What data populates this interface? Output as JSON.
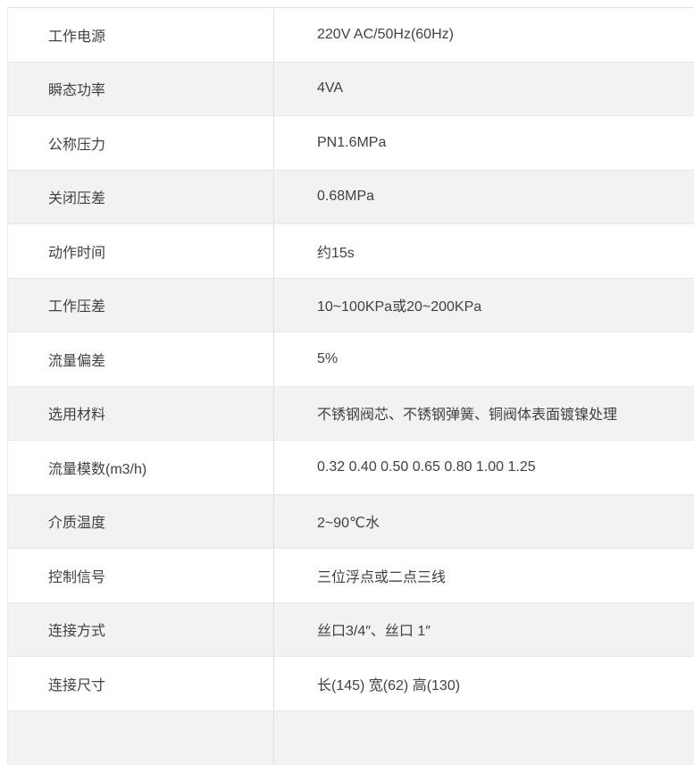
{
  "table": {
    "rows": [
      {
        "label": "工作电源",
        "value": "220V AC/50Hz(60Hz)"
      },
      {
        "label": "瞬态功率",
        "value": "4VA"
      },
      {
        "label": "公称压力",
        "value": "PN1.6MPa"
      },
      {
        "label": "关闭压差",
        "value": "0.68MPa"
      },
      {
        "label": "动作时间",
        "value": "约15s"
      },
      {
        "label": "工作压差",
        "value": "10~100KPa或20~200KPa"
      },
      {
        "label": "流量偏差",
        "value": "5%"
      },
      {
        "label": "选用材料",
        "value": "不锈钢阀芯、不锈钢弹簧、铜阀体表面镀镍处理"
      },
      {
        "label": "流量模数(m3/h)",
        "value": "0.32 0.40 0.50 0.65 0.80 1.00 1.25"
      },
      {
        "label": "介质温度",
        "value": "2~90℃水"
      },
      {
        "label": "控制信号",
        "value": "三位浮点或二点三线"
      },
      {
        "label": "连接方式",
        "value": "丝口3/4″、丝口 1″"
      },
      {
        "label": "连接尺寸",
        "value": "长(145) 宽(62) 高(130)"
      }
    ],
    "colors": {
      "stripe_background": "#f2f2f2",
      "row_background": "#ffffff",
      "border": "#e8e8e8",
      "text": "#3f4145"
    }
  }
}
